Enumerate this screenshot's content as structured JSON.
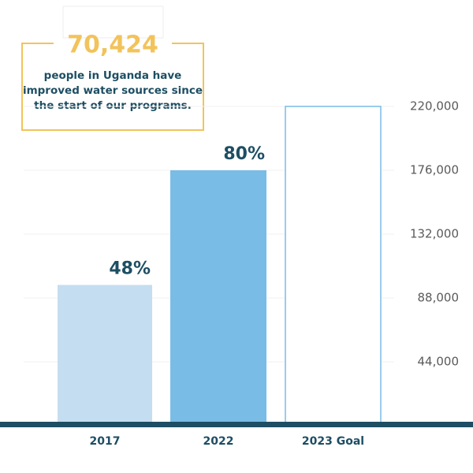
{
  "chart_data": {
    "type": "bar",
    "callout": {
      "number": "70,424",
      "lines": [
        "people in Uganda have",
        "improved water sources since",
        "the start of our programs."
      ]
    },
    "categories": [
      "2017",
      "2022",
      "2023 Goal"
    ],
    "values": [
      97000,
      176000,
      220000
    ],
    "bar_labels": [
      "48%",
      "80%",
      null
    ],
    "colors": [
      "#c5ddf0",
      "#79bce6",
      "#ffffff"
    ],
    "outline_color": "#79bce6",
    "ylim": [
      0,
      220000
    ],
    "yticks": [
      {
        "value": 44000,
        "label": "44,000"
      },
      {
        "value": 88000,
        "label": "88,000"
      },
      {
        "value": 132000,
        "label": "132,000"
      },
      {
        "value": 176000,
        "label": "176,000"
      },
      {
        "value": 220000,
        "label": "220,000"
      }
    ],
    "grid": true
  }
}
